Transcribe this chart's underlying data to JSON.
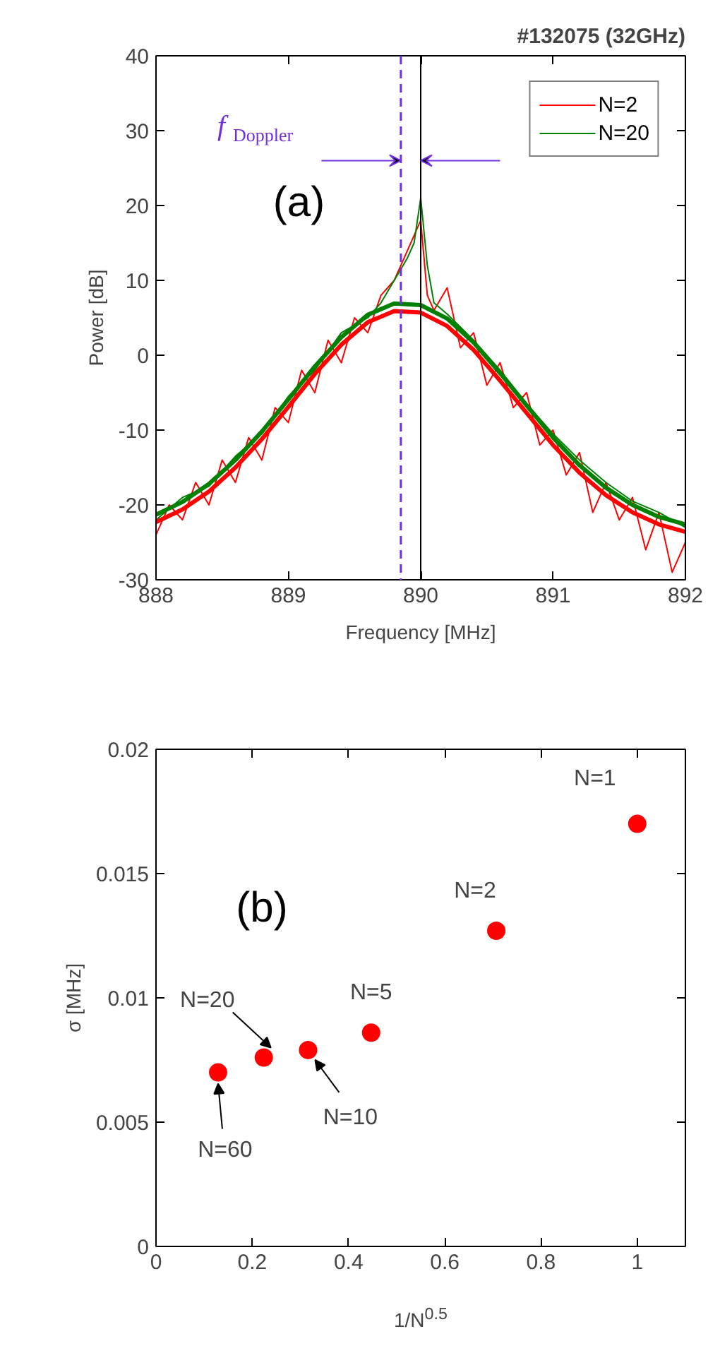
{
  "chart_data": [
    {
      "type": "line",
      "title": "#132075 (32GHz)",
      "xlabel": "Frequency [MHz]",
      "ylabel": "Power [dB]",
      "xlim": [
        888,
        892
      ],
      "xticks": [
        888,
        889,
        890,
        891,
        892
      ],
      "ylim": [
        -30,
        40
      ],
      "yticks": [
        -30,
        -20,
        -10,
        0,
        10,
        20,
        30,
        40
      ],
      "legend": "top right",
      "grid": false,
      "series": [
        {
          "name": "N=2",
          "color": "#ff0000",
          "x": [
            888.0,
            888.1,
            888.2,
            888.3,
            888.4,
            888.5,
            888.6,
            888.7,
            888.8,
            888.9,
            889.0,
            889.1,
            889.2,
            889.3,
            889.4,
            889.5,
            889.6,
            889.7,
            889.8,
            889.9,
            890.0,
            890.05,
            890.1,
            890.2,
            890.3,
            890.4,
            890.5,
            890.6,
            890.7,
            890.8,
            890.9,
            891.0,
            891.1,
            891.2,
            891.3,
            891.4,
            891.5,
            891.6,
            891.7,
            891.8,
            891.9,
            892.0
          ],
          "values": [
            -24,
            -20,
            -22,
            -17,
            -20,
            -14,
            -17,
            -11,
            -14,
            -7,
            -9,
            -2,
            -5,
            2,
            -1,
            5,
            3,
            8,
            10,
            14,
            18,
            8,
            6,
            9,
            1,
            3,
            -4,
            -1,
            -7,
            -5,
            -12,
            -10,
            -16,
            -13,
            -21,
            -17,
            -22,
            -19,
            -26,
            -21,
            -29,
            -25
          ]
        },
        {
          "name": "N=20",
          "color": "#008000",
          "x": [
            888.0,
            888.2,
            888.4,
            888.6,
            888.8,
            889.0,
            889.2,
            889.4,
            889.6,
            889.7,
            889.8,
            889.9,
            889.95,
            890.0,
            890.05,
            890.1,
            890.2,
            890.4,
            890.6,
            890.8,
            891.0,
            891.2,
            891.4,
            891.6,
            891.8,
            892.0
          ],
          "values": [
            -22,
            -19,
            -17.5,
            -13.5,
            -10.5,
            -5.5,
            -2,
            3,
            5,
            7,
            10,
            13,
            15,
            21,
            12,
            7,
            5.5,
            2,
            -2,
            -6.5,
            -10.5,
            -14,
            -17,
            -19.5,
            -21,
            -23
          ]
        },
        {
          "color": "#ff0000",
          "x": [
            888.0,
            888.2,
            888.4,
            888.6,
            888.8,
            889.0,
            889.2,
            889.4,
            889.6,
            889.8,
            890.0,
            890.2,
            890.4,
            890.6,
            890.8,
            891.0,
            891.2,
            891.4,
            891.6,
            891.8,
            892.0
          ],
          "values": [
            -22.3,
            -20.6,
            -18.2,
            -15.0,
            -11.2,
            -6.9,
            -2.5,
            1.4,
            4.4,
            5.9,
            5.7,
            3.9,
            0.7,
            -3.4,
            -7.7,
            -12.0,
            -15.7,
            -18.7,
            -21.0,
            -22.6,
            -23.6
          ]
        },
        {
          "color": "#008000",
          "x": [
            888.0,
            888.2,
            888.4,
            888.6,
            888.8,
            889.0,
            889.2,
            889.4,
            889.6,
            889.8,
            890.0,
            890.2,
            890.4,
            890.6,
            890.8,
            891.0,
            891.2,
            891.4,
            891.6,
            891.8,
            892.0
          ],
          "values": [
            -21.3,
            -19.6,
            -17.2,
            -14.0,
            -10.2,
            -5.9,
            -1.5,
            2.4,
            5.4,
            6.9,
            6.7,
            4.9,
            1.7,
            -2.4,
            -6.7,
            -11.0,
            -14.7,
            -17.7,
            -20.0,
            -21.6,
            -22.6
          ]
        }
      ],
      "ref_lines": [
        {
          "axis": "x",
          "value": 890,
          "color": "#000000",
          "line_style": "solid"
        },
        {
          "axis": "x",
          "value": 889.85,
          "color": "#7030e0",
          "line_style": "dashed"
        }
      ],
      "annotations": [
        "(a)",
        {
          "text": "f$_{Doppler}$",
          "x": 889.85,
          "y": 26
        }
      ]
    },
    {
      "type": "scatter",
      "xlabel": "1/N$^{0.5}$",
      "ylabel": "σ [MHz]",
      "xlim": [
        0,
        1.1
      ],
      "xticks": [
        0,
        0.2,
        0.4,
        0.6,
        0.8,
        1
      ],
      "ylim": [
        0,
        0.02
      ],
      "yticks": [
        0,
        0.005,
        0.01,
        0.015,
        0.02
      ],
      "grid": false,
      "marker": "circle",
      "x": [
        1,
        0.707,
        0.447,
        0.316,
        0.224,
        0.129
      ],
      "values": [
        0.017,
        0.0127,
        0.0086,
        0.0079,
        0.0076,
        0.007
      ],
      "color": "#ff0000",
      "annotations": [
        "(b)",
        {
          "text": "N=1",
          "x": 1,
          "y": 0.017
        },
        {
          "text": "N=2",
          "x": 0.707,
          "y": 0.0127
        },
        {
          "text": "N=5",
          "x": 0.447,
          "y": 0.0086
        },
        {
          "text": "N=10",
          "x": 0.316,
          "y": 0.0079
        },
        {
          "text": "N=20",
          "x": 0.224,
          "y": 0.0076
        },
        {
          "text": "N=60",
          "x": 0.129,
          "y": 0.007
        }
      ]
    }
  ]
}
